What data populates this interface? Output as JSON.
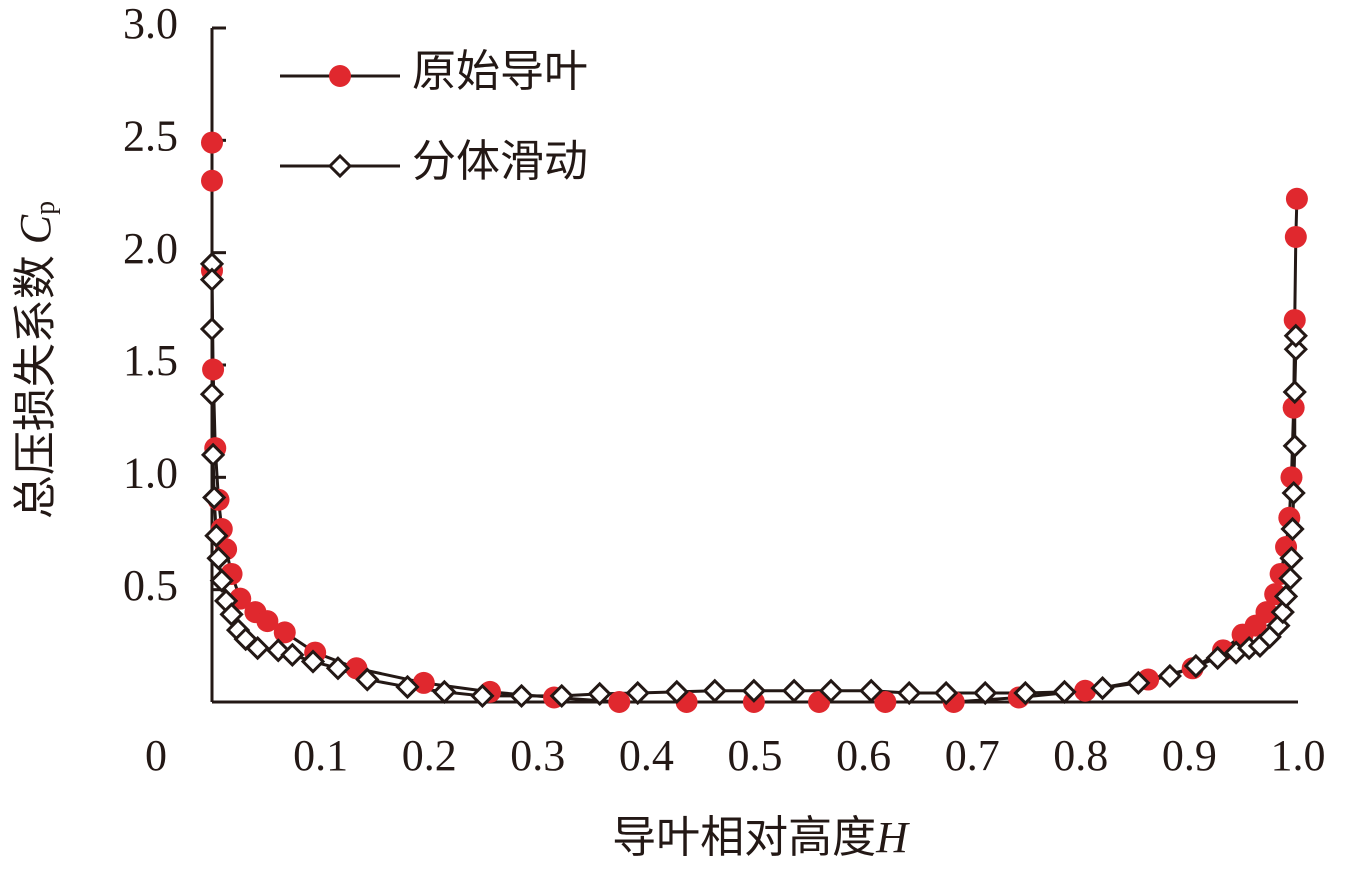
{
  "chart_data": {
    "type": "line",
    "xlabel": [
      "导叶相对高度",
      "H"
    ],
    "ylabel": [
      "总压损失系数 ",
      "C",
      "p"
    ],
    "xlim": [
      0,
      1
    ],
    "ylim": [
      0,
      3
    ],
    "xticks": [
      0,
      0.1,
      0.2,
      0.3,
      0.4,
      0.5,
      0.6,
      0.7,
      0.8,
      0.9,
      {
        "value": 1,
        "label": "1.0"
      }
    ],
    "yticks": [
      0.5,
      {
        "value": 1,
        "label": "1.0"
      },
      1.5,
      {
        "value": 2,
        "label": "2.0"
      },
      2.5,
      {
        "value": 3,
        "label": "3.0"
      }
    ],
    "legend": "upper left",
    "line_color": "#231815",
    "series": [
      {
        "name": "原始导叶",
        "color": "#e0282e",
        "marker": "circle",
        "x": [
          0,
          0,
          0,
          0.001,
          0.003,
          0.006,
          0.009,
          0.013,
          0.018,
          0.026,
          0.04,
          0.051,
          0.067,
          0.095,
          0.133,
          0.195,
          0.256,
          0.315,
          0.375,
          0.437,
          0.499,
          0.559,
          0.62,
          0.683,
          0.743,
          0.804,
          0.862,
          0.903,
          0.931,
          0.949,
          0.961,
          0.971,
          0.979,
          0.984,
          0.989,
          0.992,
          0.994,
          0.996,
          0.997,
          0.998,
          0.999
        ],
        "values": [
          2.49,
          2.32,
          1.92,
          1.48,
          1.13,
          0.9,
          0.77,
          0.68,
          0.57,
          0.46,
          0.4,
          0.36,
          0.31,
          0.22,
          0.15,
          0.085,
          0.045,
          0.02,
          0,
          0,
          0,
          0,
          0,
          0,
          0.02,
          0.05,
          0.1,
          0.15,
          0.23,
          0.3,
          0.34,
          0.4,
          0.48,
          0.57,
          0.69,
          0.82,
          1,
          1.31,
          1.7,
          2.07,
          2.24
        ]
      },
      {
        "name": "分体滑动",
        "color": "#ffffff",
        "marker": "diamond",
        "x": [
          0,
          0,
          0,
          0,
          0.001,
          0.002,
          0.004,
          0.006,
          0.009,
          0.013,
          0.018,
          0.024,
          0.031,
          0.042,
          0.061,
          0.074,
          0.093,
          0.116,
          0.143,
          0.18,
          0.214,
          0.249,
          0.285,
          0.322,
          0.357,
          0.392,
          0.428,
          0.463,
          0.499,
          0.536,
          0.57,
          0.607,
          0.642,
          0.676,
          0.712,
          0.749,
          0.785,
          0.82,
          0.853,
          0.882,
          0.906,
          0.926,
          0.943,
          0.955,
          0.965,
          0.974,
          0.982,
          0.986,
          0.989,
          0.993,
          0.994,
          0.995,
          0.996,
          0.997,
          0.997,
          0.998,
          0.998
        ],
        "values": [
          1.95,
          1.88,
          1.66,
          1.37,
          1.1,
          0.91,
          0.74,
          0.64,
          0.54,
          0.45,
          0.39,
          0.32,
          0.28,
          0.24,
          0.23,
          0.21,
          0.18,
          0.15,
          0.1,
          0.067,
          0.045,
          0.027,
          0.027,
          0.027,
          0.036,
          0.04,
          0.045,
          0.05,
          0.05,
          0.05,
          0.05,
          0.05,
          0.04,
          0.04,
          0.04,
          0.04,
          0.045,
          0.062,
          0.085,
          0.116,
          0.16,
          0.196,
          0.22,
          0.24,
          0.25,
          0.29,
          0.34,
          0.4,
          0.47,
          0.55,
          0.64,
          0.77,
          0.93,
          1.14,
          1.38,
          1.57,
          1.63
        ]
      }
    ]
  }
}
